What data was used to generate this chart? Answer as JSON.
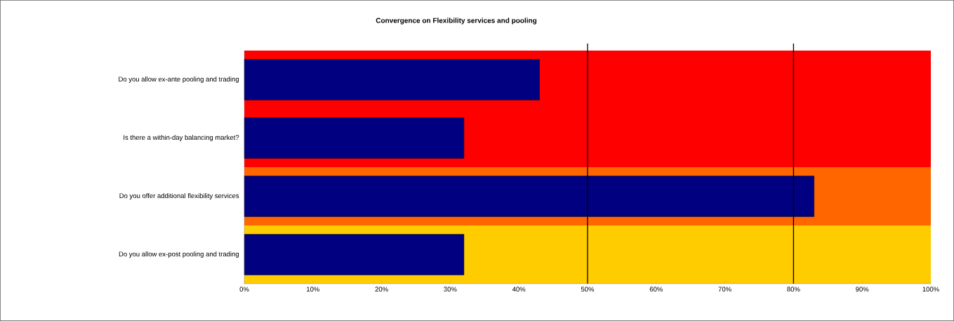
{
  "chart_data": {
    "type": "bar",
    "orientation": "horizontal",
    "title": "Convergence on Flexibility services and pooling",
    "categories": [
      "Do you allow ex-ante pooling and trading",
      "Is there a within-day balancing market?",
      "Do you offer additional flexibility services",
      "Do you allow ex-post pooling and trading"
    ],
    "values": [
      43,
      32,
      83,
      32
    ],
    "color": "#000080",
    "xlim": [
      0,
      100
    ],
    "xticks": [
      {
        "value": 0,
        "label": "0%"
      },
      {
        "value": 10,
        "label": "10%"
      },
      {
        "value": 20,
        "label": "20%"
      },
      {
        "value": 30,
        "label": "30%"
      },
      {
        "value": 40,
        "label": "40%"
      },
      {
        "value": 50,
        "label": "50%"
      },
      {
        "value": 60,
        "label": "60%"
      },
      {
        "value": 70,
        "label": "70%"
      },
      {
        "value": 80,
        "label": "80%"
      },
      {
        "value": 90,
        "label": "90%"
      },
      {
        "value": 100,
        "label": "100%"
      }
    ],
    "bands": [
      {
        "axis": "y",
        "from": "Do you allow ex-ante pooling and trading",
        "to": "Is there a within-day balancing market?",
        "color": "#ff0000"
      },
      {
        "axis": "y",
        "from": "Do you offer additional flexibility services",
        "to": "Do you offer additional flexibility services",
        "color": "#ff6600"
      },
      {
        "axis": "y",
        "from": "Do you allow ex-post pooling and trading",
        "to": "Do you allow ex-post pooling and trading",
        "color": "#ffcc00"
      }
    ],
    "ref_lines": [
      {
        "axis": "x",
        "value": 50,
        "color": "#000000"
      },
      {
        "axis": "x",
        "value": 80,
        "color": "#000000"
      }
    ]
  }
}
